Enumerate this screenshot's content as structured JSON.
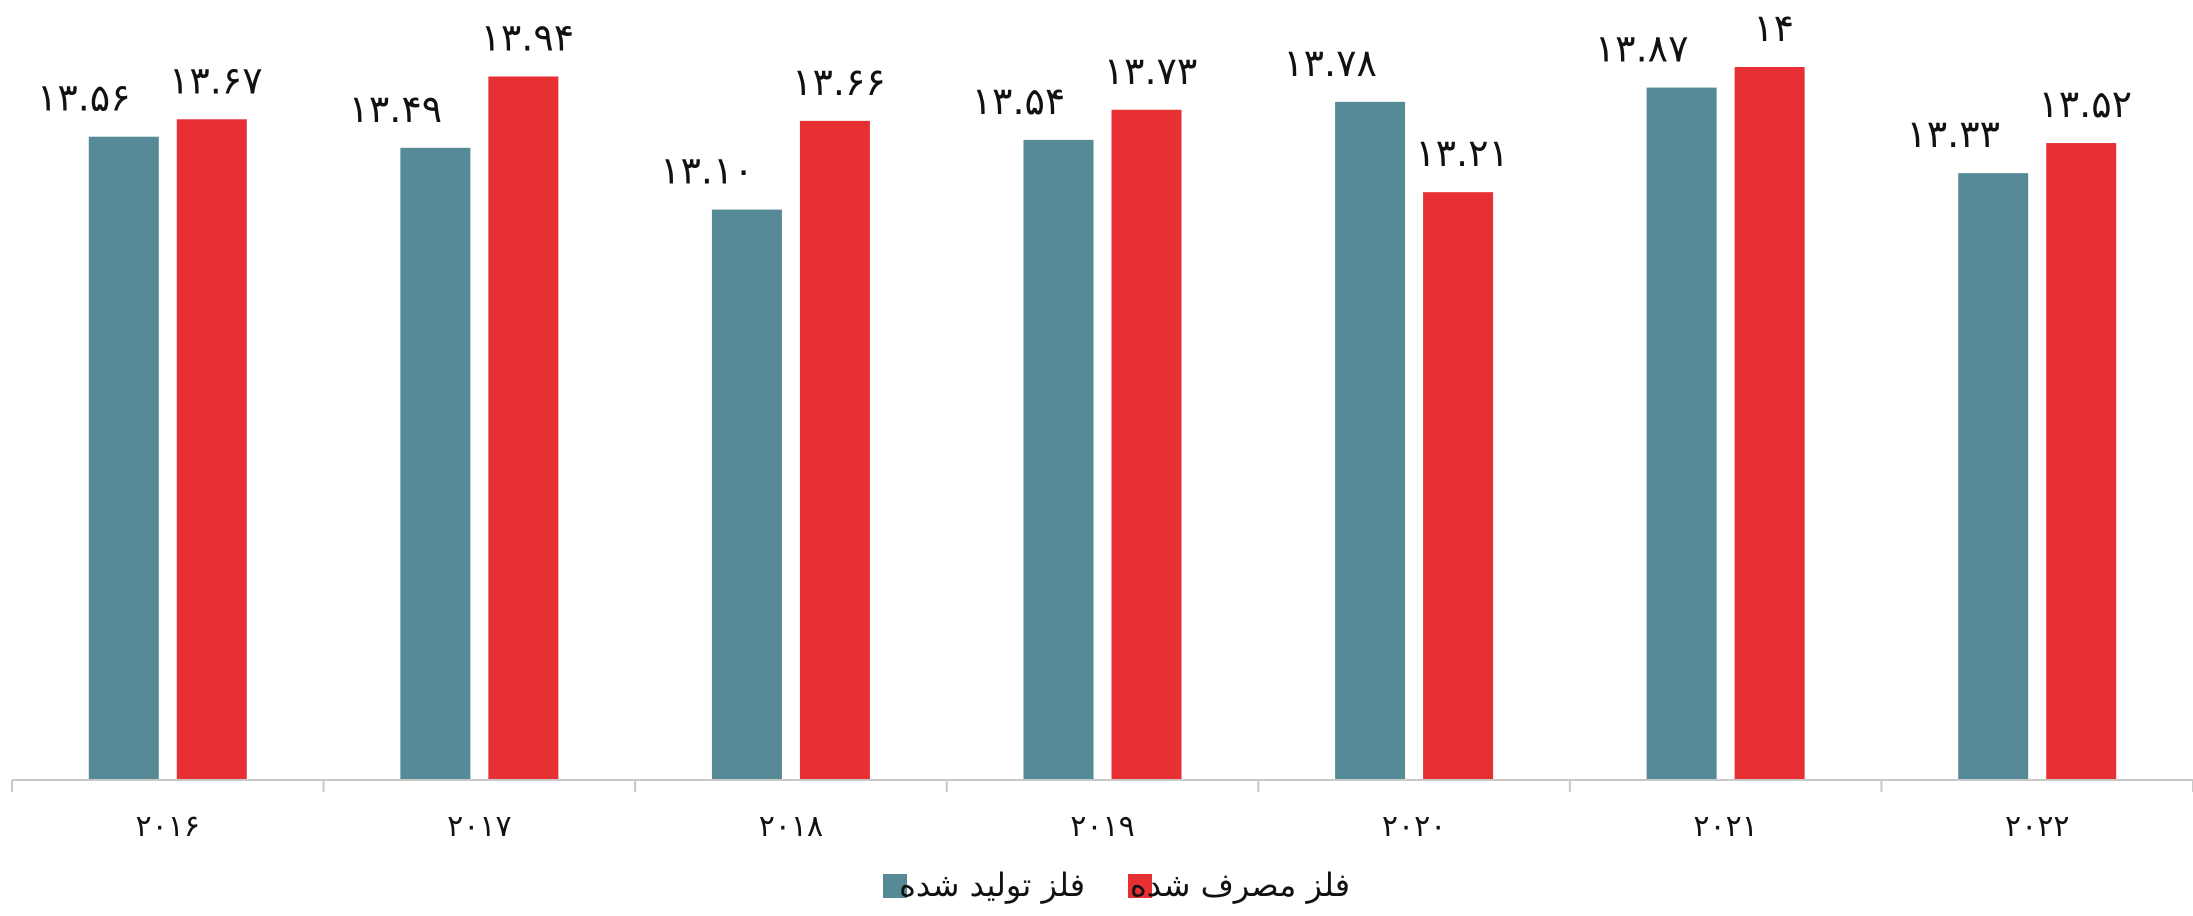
{
  "chart_data": {
    "type": "bar",
    "categories": [
      "۲۰۱۶",
      "۲۰۱۷",
      "۲۰۱۸",
      "۲۰۱۹",
      "۲۰۲۰",
      "۲۰۲۱",
      "۲۰۲۲"
    ],
    "series": [
      {
        "name": "فلز تولید شده",
        "color": "#568a97",
        "values": [
          13.56,
          13.49,
          13.1,
          13.54,
          13.78,
          13.87,
          13.33
        ],
        "labels": [
          "۱۳.۵۶",
          "۱۳.۴۹",
          "۱۳.۱۰",
          "۱۳.۵۴",
          "۱۳.۷۸",
          "۱۳.۸۷",
          "۱۳.۳۳"
        ]
      },
      {
        "name": "فلز مصرف شده",
        "color": "#e63034",
        "values": [
          13.67,
          13.94,
          13.66,
          13.73,
          13.21,
          14.0,
          13.52
        ],
        "labels": [
          "۱۳.۶۷",
          "۱۳.۹۴",
          "۱۳.۶۶",
          "۱۳.۷۳",
          "۱۳.۲۱",
          "۱۴",
          "۱۳.۵۲"
        ]
      }
    ],
    "ylim": [
      9.5,
      14.0
    ],
    "grid": false,
    "legend_position": "bottom-center",
    "title": "",
    "xlabel": "",
    "ylabel": ""
  }
}
